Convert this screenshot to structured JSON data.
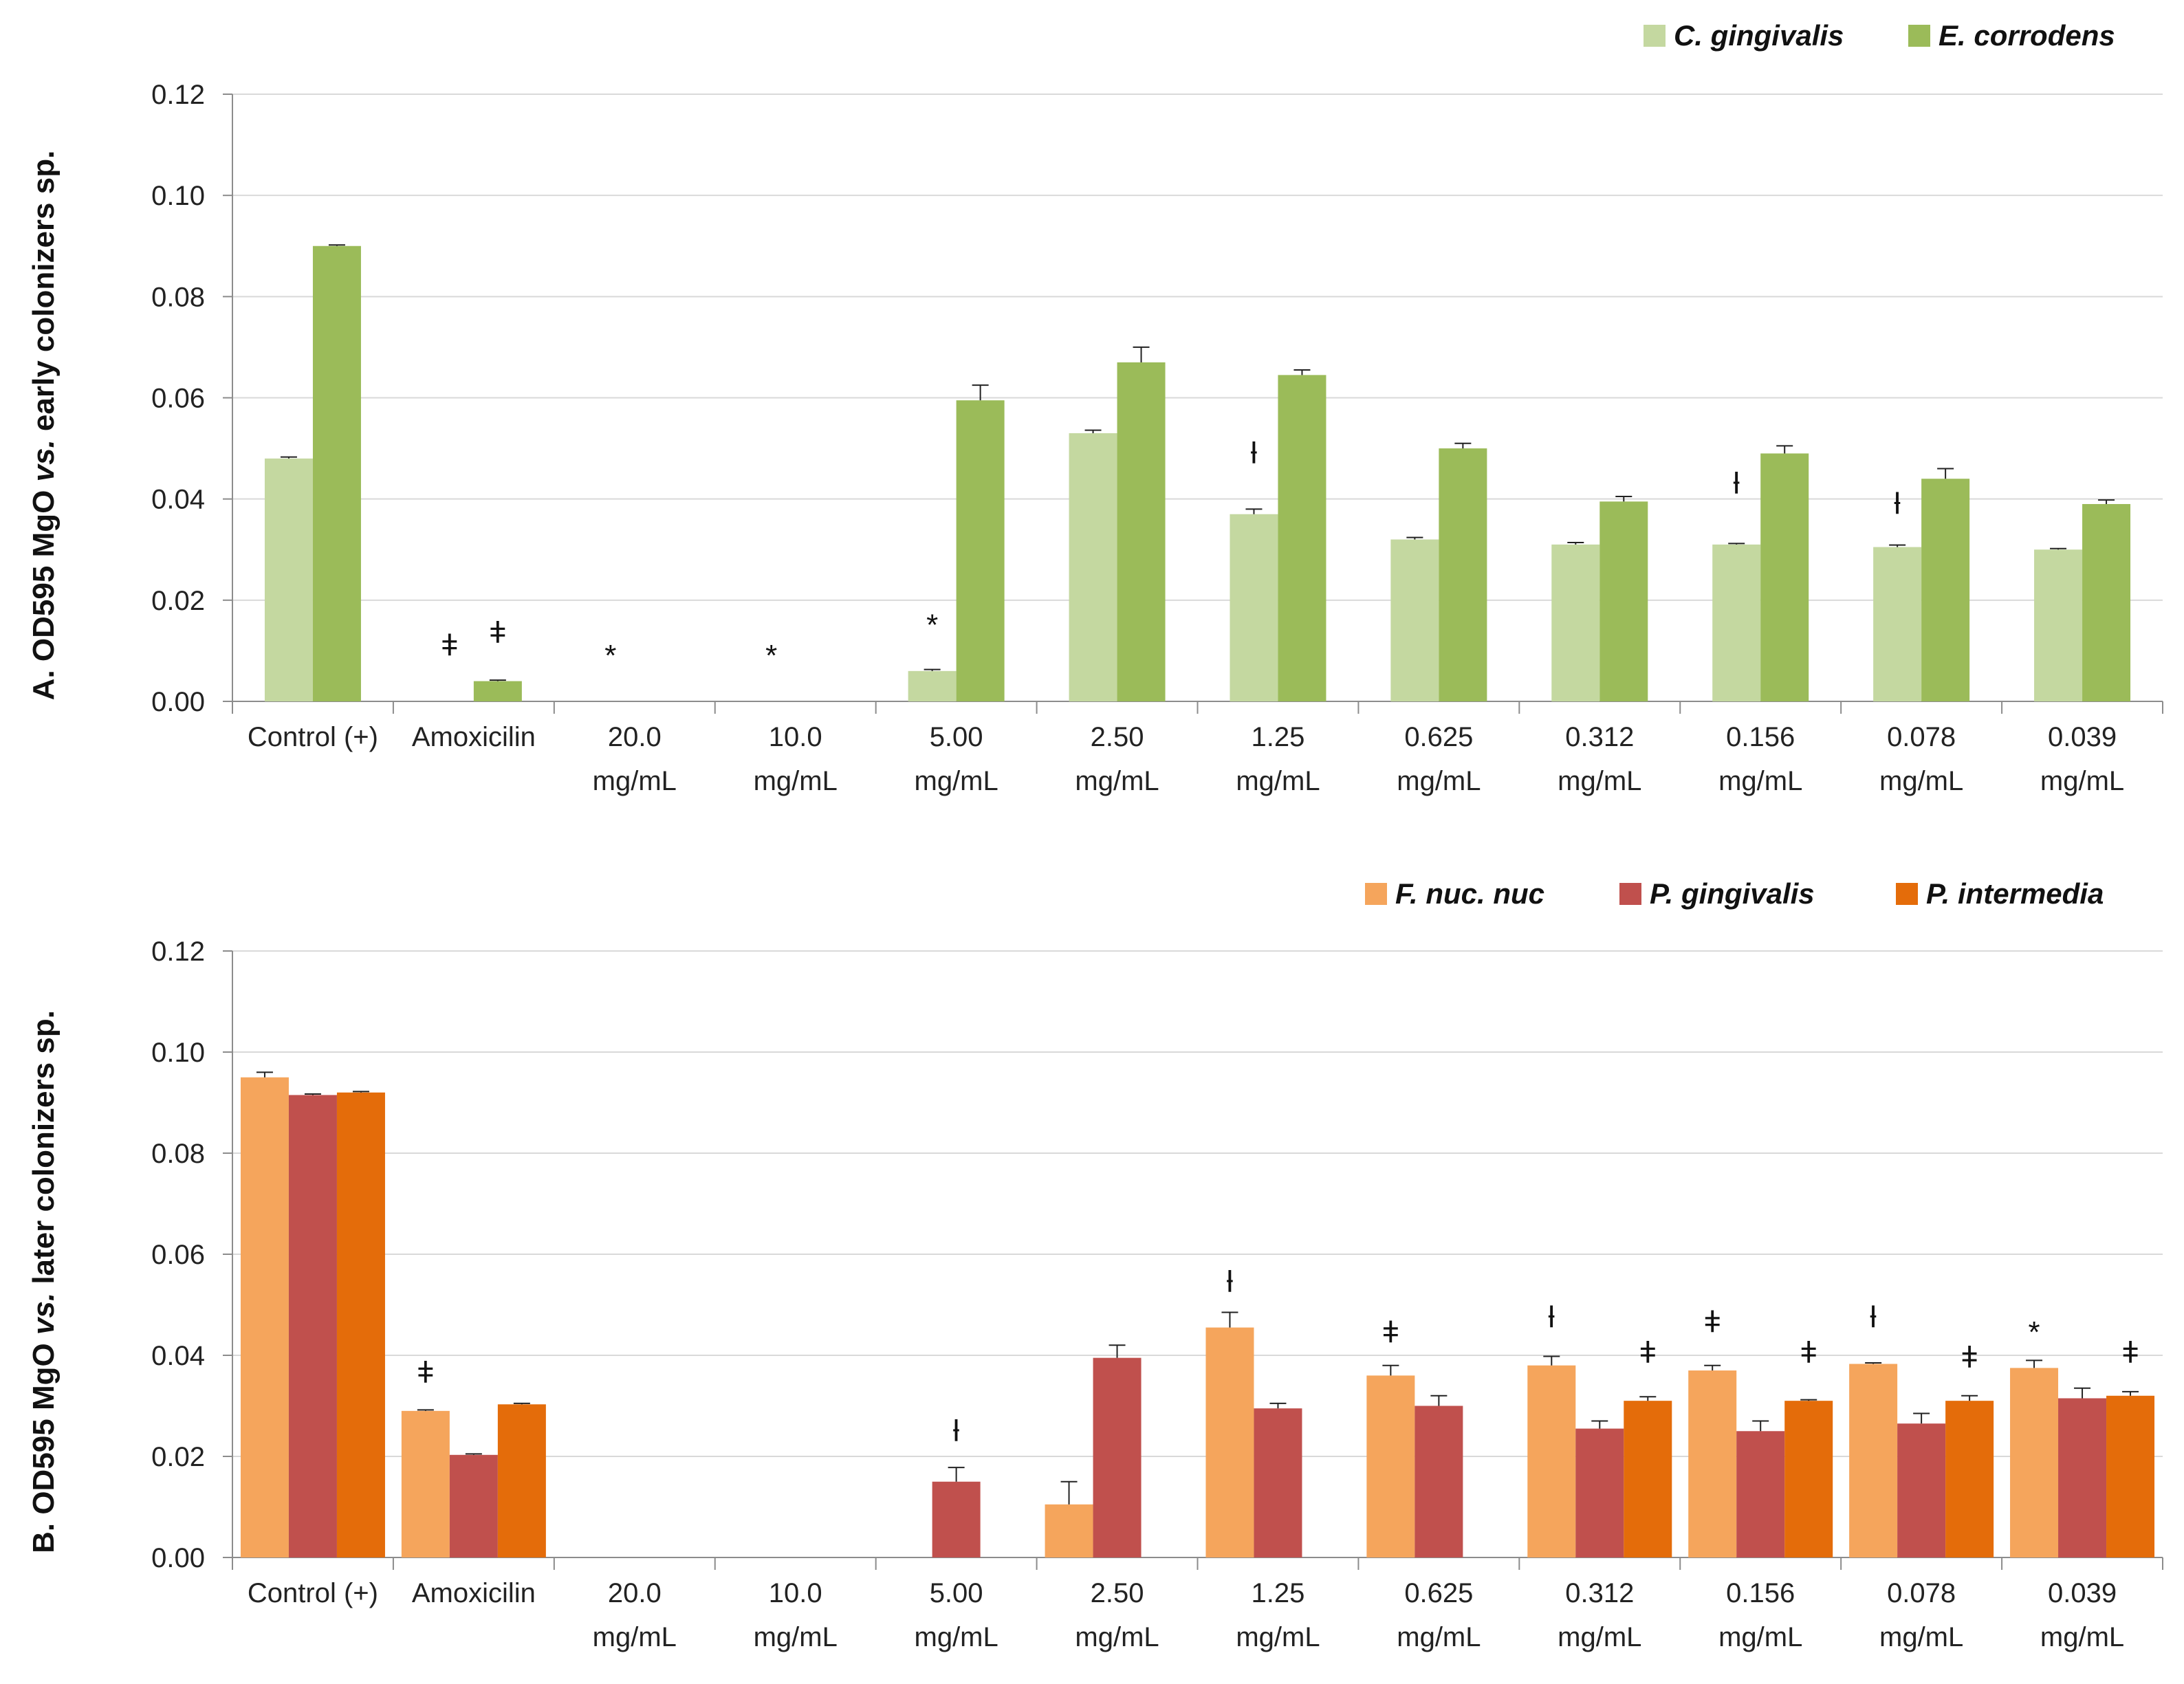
{
  "chart_data": [
    {
      "type": "bar",
      "ylabel_parts": [
        "A. OD595 MgO ",
        "vs.",
        " early colonizers sp."
      ],
      "ylim": [
        0,
        0.12
      ],
      "yticks": [
        "0.00",
        "0.02",
        "0.04",
        "0.06",
        "0.08",
        "0.10",
        "0.12"
      ],
      "grid": true,
      "legend_position": "top-right",
      "categories": [
        [
          "Control (+)"
        ],
        [
          "Amoxicilin"
        ],
        [
          "20.0",
          "mg/mL"
        ],
        [
          "10.0",
          "mg/mL"
        ],
        [
          "5.00",
          "mg/mL"
        ],
        [
          "2.50",
          "mg/mL"
        ],
        [
          "1.25",
          "mg/mL"
        ],
        [
          "0.625",
          "mg/mL"
        ],
        [
          "0.312",
          "mg/mL"
        ],
        [
          "0.156",
          "mg/mL"
        ],
        [
          "0.078",
          "mg/mL"
        ],
        [
          "0.039",
          "mg/mL"
        ]
      ],
      "series": [
        {
          "name": "C. gingivalis",
          "color": "#c4d8a0",
          "values": [
            0.048,
            0,
            0,
            0,
            0.006,
            0.053,
            0.037,
            0.032,
            0.031,
            0.031,
            0.0305,
            0.03
          ],
          "errors": [
            0.0003,
            0,
            0,
            0,
            0.0003,
            0.0006,
            0.001,
            0.0004,
            0.0004,
            0.0002,
            0.0004,
            0.0002
          ]
        },
        {
          "name": "E. corrodens",
          "color": "#9bbb59",
          "values": [
            0.09,
            0.004,
            0,
            0,
            0.0595,
            0.067,
            0.0645,
            0.05,
            0.0395,
            0.049,
            0.044,
            0.039
          ],
          "errors": [
            0.0002,
            0.0002,
            0,
            0,
            0.003,
            0.003,
            0.001,
            0.001,
            0.001,
            0.0015,
            0.002,
            0.0008
          ]
        }
      ],
      "annotations": [
        {
          "category": 1,
          "series": 0,
          "symbol": "ǂ",
          "value": 0.011
        },
        {
          "category": 1,
          "series": 1,
          "symbol": "ǂ",
          "value": 0.0135
        },
        {
          "category": 2,
          "series": 0,
          "symbol": "*",
          "value": 0.009
        },
        {
          "category": 3,
          "series": 0,
          "symbol": "*",
          "value": 0.009
        },
        {
          "category": 4,
          "series": 0,
          "symbol": "*",
          "value": 0.015
        },
        {
          "category": 6,
          "series": 0,
          "symbol": "ƚ",
          "value": 0.049
        },
        {
          "category": 9,
          "series": 0,
          "symbol": "ƚ",
          "value": 0.043
        },
        {
          "category": 10,
          "series": 0,
          "symbol": "ƚ",
          "value": 0.039
        }
      ]
    },
    {
      "type": "bar",
      "ylabel_parts": [
        "B. OD595 MgO ",
        "vs.",
        " later colonizers sp."
      ],
      "ylim": [
        0,
        0.12
      ],
      "yticks": [
        "0.00",
        "0.02",
        "0.04",
        "0.06",
        "0.08",
        "0.10",
        "0.12"
      ],
      "grid": true,
      "legend_position": "top-right",
      "categories": [
        [
          "Control (+)"
        ],
        [
          "Amoxicilin"
        ],
        [
          "20.0",
          "mg/mL"
        ],
        [
          "10.0",
          "mg/mL"
        ],
        [
          "5.00",
          "mg/mL"
        ],
        [
          "2.50",
          "mg/mL"
        ],
        [
          "1.25",
          "mg/mL"
        ],
        [
          "0.625",
          "mg/mL"
        ],
        [
          "0.312",
          "mg/mL"
        ],
        [
          "0.156",
          "mg/mL"
        ],
        [
          "0.078",
          "mg/mL"
        ],
        [
          "0.039",
          "mg/mL"
        ]
      ],
      "series": [
        {
          "name": "F. nuc. nuc",
          "color": "#f5a55c",
          "values": [
            0.095,
            0.029,
            0,
            0,
            0,
            0.0105,
            0.0455,
            0.036,
            0.038,
            0.037,
            0.0383,
            0.0375
          ],
          "errors": [
            0.001,
            0.0002,
            0,
            0,
            0,
            0.0045,
            0.003,
            0.002,
            0.0018,
            0.001,
            0.0002,
            0.0015
          ]
        },
        {
          "name": "P. gingivalis",
          "color": "#c0504d",
          "values": [
            0.0915,
            0.0203,
            0,
            0,
            0.015,
            0.0395,
            0.0295,
            0.03,
            0.0255,
            0.025,
            0.0265,
            0.0315
          ],
          "errors": [
            0.0002,
            0.0002,
            0,
            0,
            0.0028,
            0.0025,
            0.001,
            0.002,
            0.0015,
            0.002,
            0.002,
            0.002
          ]
        },
        {
          "name": "P. intermedia",
          "color": "#e46c0a",
          "values": [
            0.092,
            0.0303,
            0,
            0,
            0,
            0,
            0,
            0,
            0.031,
            0.031,
            0.031,
            0.032
          ],
          "errors": [
            0.0002,
            0.0002,
            0,
            0,
            0,
            0,
            0,
            0,
            0.0008,
            0.0002,
            0.001,
            0.0008
          ]
        }
      ],
      "annotations": [
        {
          "category": 1,
          "series": 0,
          "symbol": "ǂ",
          "value": 0.0365
        },
        {
          "category": 4,
          "series": 1,
          "symbol": "ƚ",
          "value": 0.025
        },
        {
          "category": 6,
          "series": 0,
          "symbol": "ƚ",
          "value": 0.0545
        },
        {
          "category": 7,
          "series": 0,
          "symbol": "ǂ",
          "value": 0.0445
        },
        {
          "category": 8,
          "series": 0,
          "symbol": "ƚ",
          "value": 0.0475
        },
        {
          "category": 8,
          "series": 2,
          "symbol": "ǂ",
          "value": 0.0405
        },
        {
          "category": 9,
          "series": 0,
          "symbol": "ǂ",
          "value": 0.0465
        },
        {
          "category": 9,
          "series": 2,
          "symbol": "ǂ",
          "value": 0.0405
        },
        {
          "category": 10,
          "series": 0,
          "symbol": "ƚ",
          "value": 0.0475
        },
        {
          "category": 10,
          "series": 2,
          "symbol": "ǂ",
          "value": 0.0395
        },
        {
          "category": 11,
          "series": 0,
          "symbol": "*",
          "value": 0.0445
        },
        {
          "category": 11,
          "series": 2,
          "symbol": "ǂ",
          "value": 0.0405
        }
      ]
    }
  ]
}
